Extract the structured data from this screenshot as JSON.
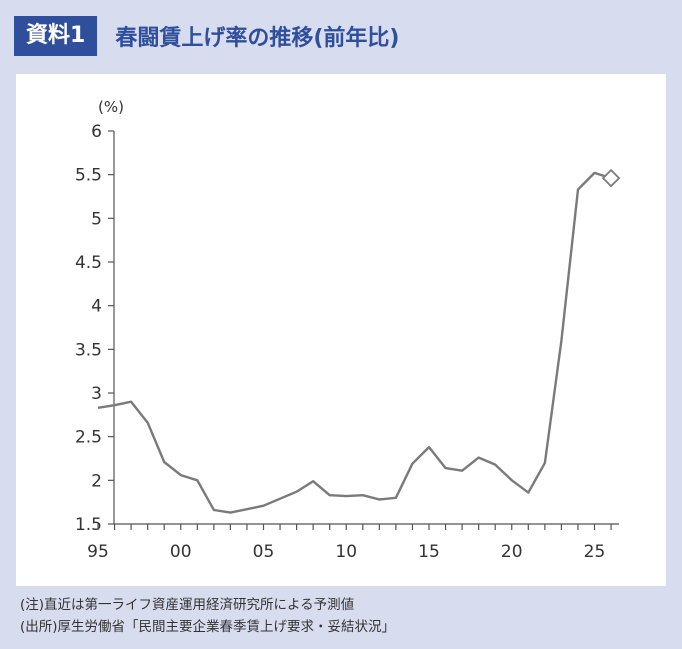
{
  "header": {
    "badge": "資料1",
    "title": "春闘賃上げ率の推移(前年比)"
  },
  "colors": {
    "accent": "#2f4f9c",
    "line": "#7a7a7a",
    "background": "#d7dcee"
  },
  "chart_data": {
    "type": "line",
    "title": "春闘賃上げ率の推移(前年比)",
    "ylabel": "(%)",
    "xlabel": "",
    "ylim": [
      1.5,
      6
    ],
    "yticks": [
      1.5,
      2,
      2.5,
      3,
      3.5,
      4,
      4.5,
      5,
      5.5,
      6
    ],
    "ytick_labels": [
      "1.5",
      "2",
      "2.5",
      "3",
      "3.5",
      "4",
      "4.5",
      "5",
      "5.5",
      "6"
    ],
    "xticks": [
      1995,
      2000,
      2005,
      2010,
      2015,
      2020,
      2025
    ],
    "xtick_labels": [
      "95",
      "00",
      "05",
      "10",
      "15",
      "20",
      "25"
    ],
    "grid": false,
    "series": [
      {
        "x": [
          1995,
          1996,
          1997,
          1998,
          1999,
          2000,
          2001,
          2002,
          2003,
          2004,
          2005,
          2006,
          2007,
          2008,
          2009,
          2010,
          2011,
          2012,
          2013,
          2014,
          2015,
          2016,
          2017,
          2018,
          2019,
          2020,
          2021,
          2022,
          2023,
          2024,
          2025
        ],
        "values": [
          2.83,
          2.86,
          2.9,
          2.66,
          2.21,
          2.06,
          2.0,
          1.66,
          1.63,
          1.67,
          1.71,
          1.79,
          1.87,
          1.99,
          1.83,
          1.82,
          1.83,
          1.78,
          1.8,
          2.19,
          2.38,
          2.14,
          2.11,
          2.26,
          2.18,
          2.0,
          1.86,
          2.2,
          3.6,
          5.33,
          5.52
        ]
      }
    ],
    "forecast": {
      "x": 2026,
      "value": 5.46,
      "marker": "diamond"
    }
  },
  "notes": {
    "note1": "(注)直近は第一ライフ資産運用経済研究所による予測値",
    "note2": "(出所)厚生労働省「民間主要企業春季賃上げ要求・妥結状況」"
  }
}
